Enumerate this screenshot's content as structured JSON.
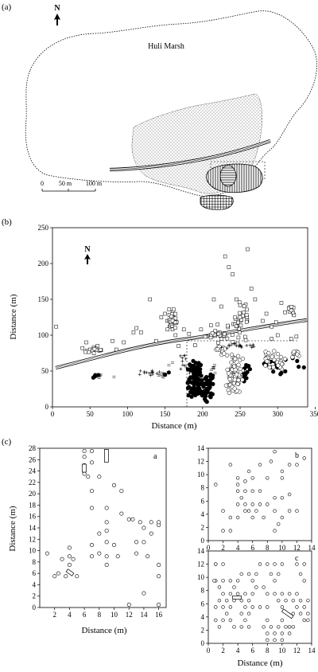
{
  "panel_a": {
    "label": "(a)",
    "north": "N",
    "marsh_label": "Huli Marsh",
    "scale": {
      "ticks": [
        "0",
        "50 m",
        "100 m"
      ]
    }
  },
  "panel_b": {
    "label": "(b)",
    "north": "N",
    "xlabel": "Distance (m)",
    "ylabel": "Distance (m)",
    "xticks": [
      "0",
      "50",
      "100",
      "150",
      "200",
      "250",
      "300",
      "350"
    ],
    "yticks": [
      "0",
      "50",
      "100",
      "150",
      "200",
      "250"
    ]
  },
  "panel_c": {
    "label": "(c)",
    "sub_a": {
      "tag": "a",
      "xlabel": "Distance (m)",
      "ylabel": "Distance (m)",
      "xticks": [
        "2",
        "4",
        "6",
        "8",
        "10",
        "12",
        "14",
        "16"
      ],
      "yticks": [
        "0",
        "2",
        "4",
        "6",
        "8",
        "10",
        "12",
        "14",
        "16",
        "18",
        "20",
        "22",
        "24",
        "26",
        "28"
      ]
    },
    "sub_b": {
      "tag": "b",
      "xticks": [
        "0",
        "2",
        "4",
        "6",
        "8",
        "10",
        "12",
        "14"
      ],
      "yticks": [
        "0",
        "2",
        "4",
        "6",
        "8",
        "10",
        "12",
        "14"
      ]
    },
    "sub_c": {
      "tag": "c",
      "xlabel": "Distance (m)",
      "xticks": [
        "0",
        "2",
        "4",
        "6",
        "8",
        "10",
        "12",
        "14"
      ],
      "yticks": [
        "0",
        "2",
        "4",
        "6",
        "8",
        "10",
        "12",
        "14"
      ]
    }
  }
}
